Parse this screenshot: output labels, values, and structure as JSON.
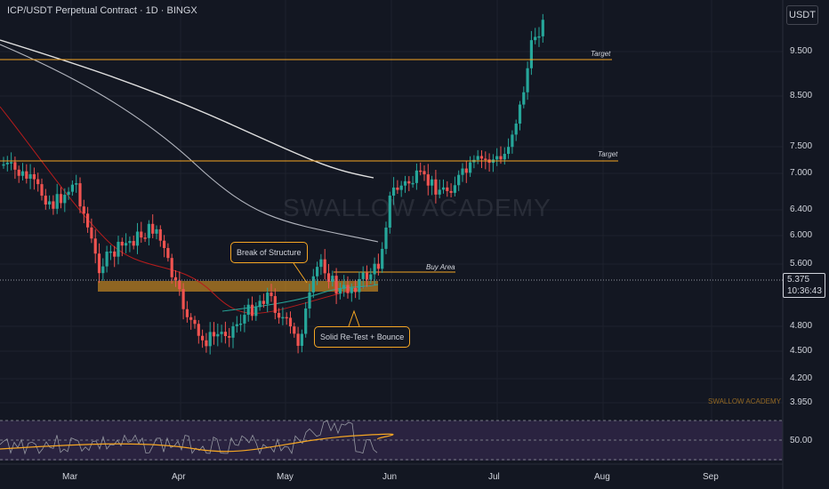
{
  "header": {
    "title": "ICP/USDT Perpetual Contract · 1D · BINGX"
  },
  "currency_button": "USDT",
  "price_axis": [
    "9.500",
    "8.500",
    "7.500",
    "7.000",
    "6.400",
    "6.000",
    "5.600",
    "4.800",
    "4.500",
    "4.200",
    "3.950"
  ],
  "current_price": {
    "value": "5.375",
    "countdown": "10:36:43"
  },
  "time_axis": [
    "Mar",
    "Apr",
    "May",
    "Jun",
    "Jul",
    "Aug",
    "Sep"
  ],
  "annotations": {
    "target_upper": "Target",
    "target_lower": "Target",
    "buy_area": "Buy Area",
    "break_of_structure": "Break of Structure",
    "retest": "Solid Re-Test + Bounce"
  },
  "watermark": "SWALLOW ACADEMY",
  "watermark_small": "SWALLOW ACADEMY",
  "rsi": {
    "level_label": "50.00"
  },
  "colors": {
    "bull": "#26a69a",
    "bear": "#ef5350",
    "level": "#f5a623",
    "background": "#131722",
    "ma_white": "#e0e0e0",
    "rsi_fill": "#2a2340"
  }
}
